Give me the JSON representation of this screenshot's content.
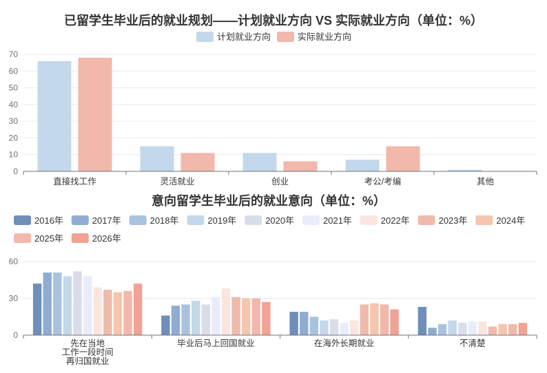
{
  "chart_data": [
    {
      "type": "bar",
      "title": "已留学生毕业后的就业规划——计划就业方向 VS 实际就业方向（单位：%）",
      "categories": [
        "直接找工作",
        "灵活就业",
        "创业",
        "考公/考编",
        "其他"
      ],
      "ylim": [
        0,
        70
      ],
      "yticks": [
        0,
        10,
        20,
        30,
        40,
        50,
        60,
        70
      ],
      "grid": true,
      "legend_position": "top-center",
      "series": [
        {
          "name": "计划就业方向",
          "color": "#c3d8ea",
          "values": [
            66,
            15,
            11,
            7,
            1
          ]
        },
        {
          "name": "实际就业方向",
          "color": "#f2b8ab",
          "values": [
            68,
            11,
            6,
            15,
            0
          ]
        }
      ]
    },
    {
      "type": "bar",
      "title": "意向留学生毕业后的就业意向（单位：%）",
      "categories": [
        "先在当地工作一段时间再归国就业",
        "毕业后马上回国就业",
        "在海外长期就业",
        "不清楚"
      ],
      "category_lines": [
        [
          "先在当地",
          "工作一段时间",
          "再归国就业"
        ],
        [
          "毕业后马上回国就业"
        ],
        [
          "在海外长期就业"
        ],
        [
          "不清楚"
        ]
      ],
      "ylim": [
        0,
        60
      ],
      "yticks": [
        0,
        30,
        60
      ],
      "grid": true,
      "legend_position": "top-left",
      "series": [
        {
          "name": "2016年",
          "color": "#6f8fb9",
          "values": [
            42,
            16,
            19,
            23
          ]
        },
        {
          "name": "2017年",
          "color": "#8eadd0",
          "values": [
            51,
            24,
            19,
            6
          ]
        },
        {
          "name": "2018年",
          "color": "#a9c3df",
          "values": [
            51,
            25,
            15,
            9
          ]
        },
        {
          "name": "2019年",
          "color": "#c3d8ea",
          "values": [
            48,
            28,
            12,
            12
          ]
        },
        {
          "name": "2020年",
          "color": "#dadde9",
          "values": [
            52,
            25,
            13,
            10
          ]
        },
        {
          "name": "2021年",
          "color": "#e9ecfa",
          "values": [
            48,
            31,
            10,
            11
          ]
        },
        {
          "name": "2022年",
          "color": "#fbe6df",
          "values": [
            39,
            38,
            12,
            11
          ]
        },
        {
          "name": "2023年",
          "color": "#eebbaa",
          "values": [
            37,
            31,
            25,
            7
          ]
        },
        {
          "name": "2024年",
          "color": "#f4c6ae",
          "values": [
            35,
            30,
            26,
            9
          ]
        },
        {
          "name": "2025年",
          "color": "#f2b8ab",
          "values": [
            36,
            30,
            25,
            9
          ]
        },
        {
          "name": "2026年",
          "color": "#f0a294",
          "values": [
            42,
            27,
            21,
            10
          ]
        }
      ]
    }
  ]
}
